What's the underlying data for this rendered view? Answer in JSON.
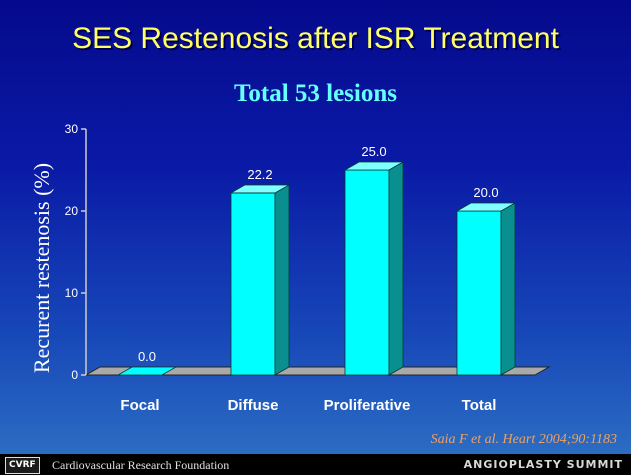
{
  "slide": {
    "title": "SES Restenosis after ISR Treatment",
    "subtitle": "Total 53 lesions",
    "citation": "Saia F et al. Heart 2004;90:1183",
    "footer_logo": "CVRF",
    "footer_foundation": "Cardiovascular Research Foundation",
    "footer_event": "ANGIOPLASTY SUMMIT"
  },
  "chart_data": {
    "type": "bar",
    "title": "Total 53 lesions",
    "categories": [
      "Focal",
      "Diffuse",
      "Proliferative",
      "Total"
    ],
    "values": [
      0.0,
      22.2,
      25.0,
      20.0
    ],
    "data_labels": [
      "0.0",
      "22.2",
      "25.0",
      "20.0"
    ],
    "xlabel": "",
    "ylabel": "Recurent restenosis (%)",
    "ylim": [
      0,
      30
    ],
    "yticks": [
      0,
      10,
      20,
      30
    ],
    "bar_color": "#00ffff",
    "bar_side_color": "#0a8f8f",
    "bar_top_color": "#7fffff",
    "grid": false
  }
}
